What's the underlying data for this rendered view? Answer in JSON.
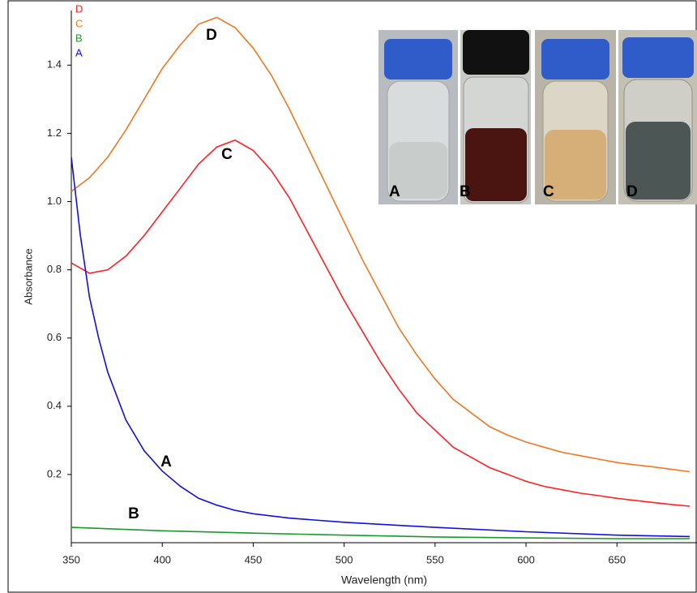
{
  "chart_data": {
    "type": "line",
    "xlabel": "Wavelength (nm)",
    "ylabel": "Absorbance",
    "xlim": [
      350,
      694
    ],
    "ylim": [
      0,
      1.56
    ],
    "xticks": [
      350,
      400,
      450,
      500,
      550,
      600,
      650
    ],
    "yticks": [
      0.2,
      0.4,
      0.6,
      0.8,
      {
        "value": 1,
        "label": "1.0"
      },
      1.2,
      1.4
    ],
    "series": [
      {
        "name": "D",
        "color": "#ff2020",
        "x": [
          350,
          360,
          370,
          380,
          390,
          400,
          410,
          420,
          430,
          440,
          450,
          460,
          470,
          480,
          490,
          500,
          510,
          520,
          530,
          540,
          550,
          560,
          570,
          580,
          590,
          600,
          610,
          620,
          630,
          640,
          650,
          660,
          670,
          680,
          690
        ],
        "values": [
          0.82,
          0.79,
          0.8,
          0.84,
          0.9,
          0.97,
          1.04,
          1.11,
          1.16,
          1.18,
          1.15,
          1.09,
          1.01,
          0.91,
          0.81,
          0.71,
          0.62,
          0.53,
          0.45,
          0.38,
          0.33,
          0.28,
          0.25,
          0.22,
          0.2,
          0.18,
          0.165,
          0.155,
          0.145,
          0.138,
          0.13,
          0.124,
          0.118,
          0.112,
          0.107
        ]
      },
      {
        "name": "C",
        "color": "#f07820",
        "x": [
          350,
          360,
          370,
          380,
          390,
          400,
          410,
          420,
          430,
          440,
          450,
          460,
          470,
          480,
          490,
          500,
          510,
          520,
          530,
          540,
          550,
          560,
          570,
          580,
          590,
          600,
          610,
          620,
          630,
          640,
          650,
          660,
          670,
          680,
          690
        ],
        "values": [
          1.03,
          1.07,
          1.13,
          1.21,
          1.3,
          1.39,
          1.46,
          1.52,
          1.54,
          1.51,
          1.45,
          1.37,
          1.27,
          1.16,
          1.05,
          0.94,
          0.83,
          0.73,
          0.63,
          0.55,
          0.48,
          0.42,
          0.38,
          0.34,
          0.315,
          0.295,
          0.28,
          0.265,
          0.255,
          0.245,
          0.235,
          0.228,
          0.222,
          0.215,
          0.208
        ]
      },
      {
        "name": "B",
        "color": "#1a9a2a",
        "x": [
          350,
          400,
          450,
          500,
          550,
          600,
          650,
          690
        ],
        "values": [
          0.045,
          0.035,
          0.028,
          0.022,
          0.017,
          0.014,
          0.012,
          0.012
        ]
      },
      {
        "name": "A",
        "color": "#1010e0",
        "x": [
          350,
          355,
          360,
          365,
          370,
          380,
          390,
          400,
          410,
          420,
          430,
          440,
          450,
          470,
          500,
          550,
          600,
          650,
          690
        ],
        "values": [
          1.13,
          0.9,
          0.72,
          0.6,
          0.5,
          0.36,
          0.27,
          0.21,
          0.165,
          0.13,
          0.11,
          0.095,
          0.085,
          0.072,
          0.06,
          0.045,
          0.032,
          0.022,
          0.018
        ]
      }
    ],
    "annotations": [
      "D",
      "C",
      "A",
      "B"
    ],
    "inset_labels": [
      "A",
      "B",
      "C",
      "D"
    ]
  }
}
